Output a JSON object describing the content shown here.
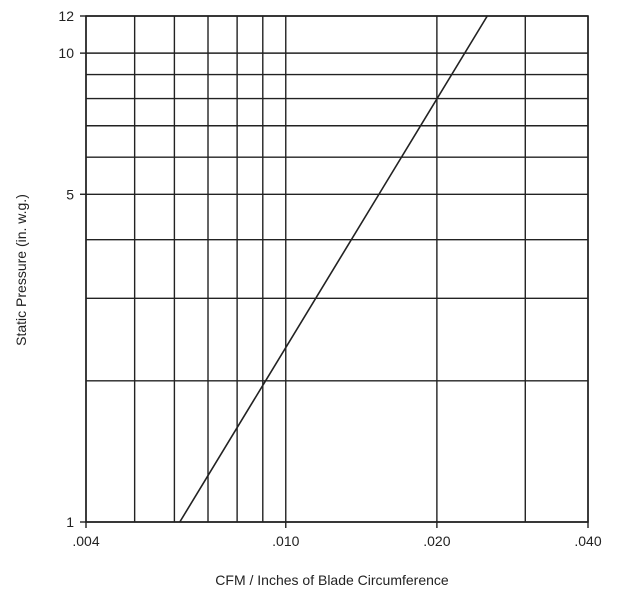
{
  "chart_data": {
    "type": "line",
    "title": "",
    "xlabel": "CFM / Inches of Blade Circumference",
    "ylabel": "Static Pressure (in. w.g.)",
    "x_scale": "log",
    "y_scale": "log",
    "xlim": [
      0.004,
      0.04
    ],
    "ylim": [
      1,
      12
    ],
    "grid": true,
    "legend": "none",
    "x_ticks": [
      {
        "value": 0.004,
        "label": ".004"
      },
      {
        "value": 0.01,
        "label": ".010"
      },
      {
        "value": 0.02,
        "label": ".020"
      },
      {
        "value": 0.04,
        "label": ".040"
      }
    ],
    "y_ticks": [
      {
        "value": 1,
        "label": "1"
      },
      {
        "value": 5,
        "label": "5"
      },
      {
        "value": 10,
        "label": "10"
      },
      {
        "value": 12,
        "label": "12"
      }
    ],
    "x_gridlines": [
      0.004,
      0.005,
      0.006,
      0.007,
      0.008,
      0.009,
      0.01,
      0.02,
      0.03,
      0.04
    ],
    "y_gridlines": [
      1,
      2,
      3,
      4,
      5,
      6,
      7,
      8,
      9,
      10,
      12
    ],
    "series": [
      {
        "points": [
          {
            "x": 0.00615,
            "y": 1
          },
          {
            "x": 0.0252,
            "y": 12
          }
        ]
      }
    ],
    "colors": {
      "axis": "#222222",
      "grid": "#222222",
      "line": "#222222"
    }
  }
}
